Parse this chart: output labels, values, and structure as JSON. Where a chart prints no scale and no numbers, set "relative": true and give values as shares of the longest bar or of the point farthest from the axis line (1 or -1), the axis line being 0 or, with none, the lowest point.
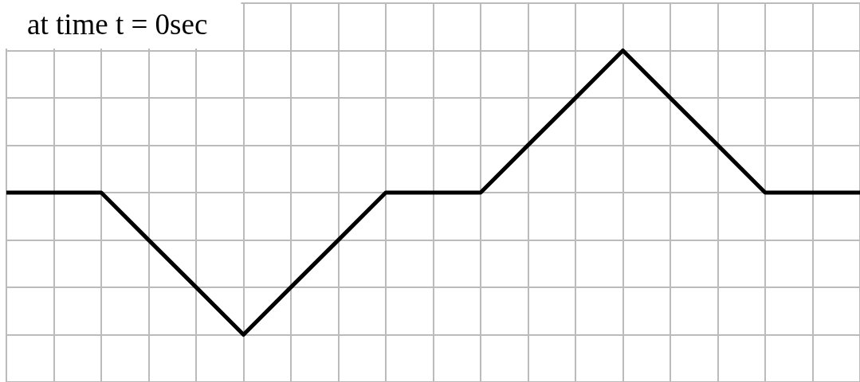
{
  "chart_data": {
    "type": "line",
    "title": "at time t = 0sec",
    "categories": [
      null,
      null,
      null,
      null,
      null,
      null,
      null,
      null,
      null,
      null,
      null,
      null,
      null,
      null,
      null,
      null,
      null,
      null,
      null
    ],
    "values": [
      0.5,
      0.5,
      0.5,
      0.333,
      0.167,
      0,
      0.167,
      0.333,
      0.5,
      0.5,
      0.5,
      0.667,
      0.833,
      1,
      0.833,
      0.667,
      0.5,
      0.5,
      0.5
    ],
    "color": "#000000",
    "relative": true,
    "grid": true,
    "marker": "none"
  }
}
